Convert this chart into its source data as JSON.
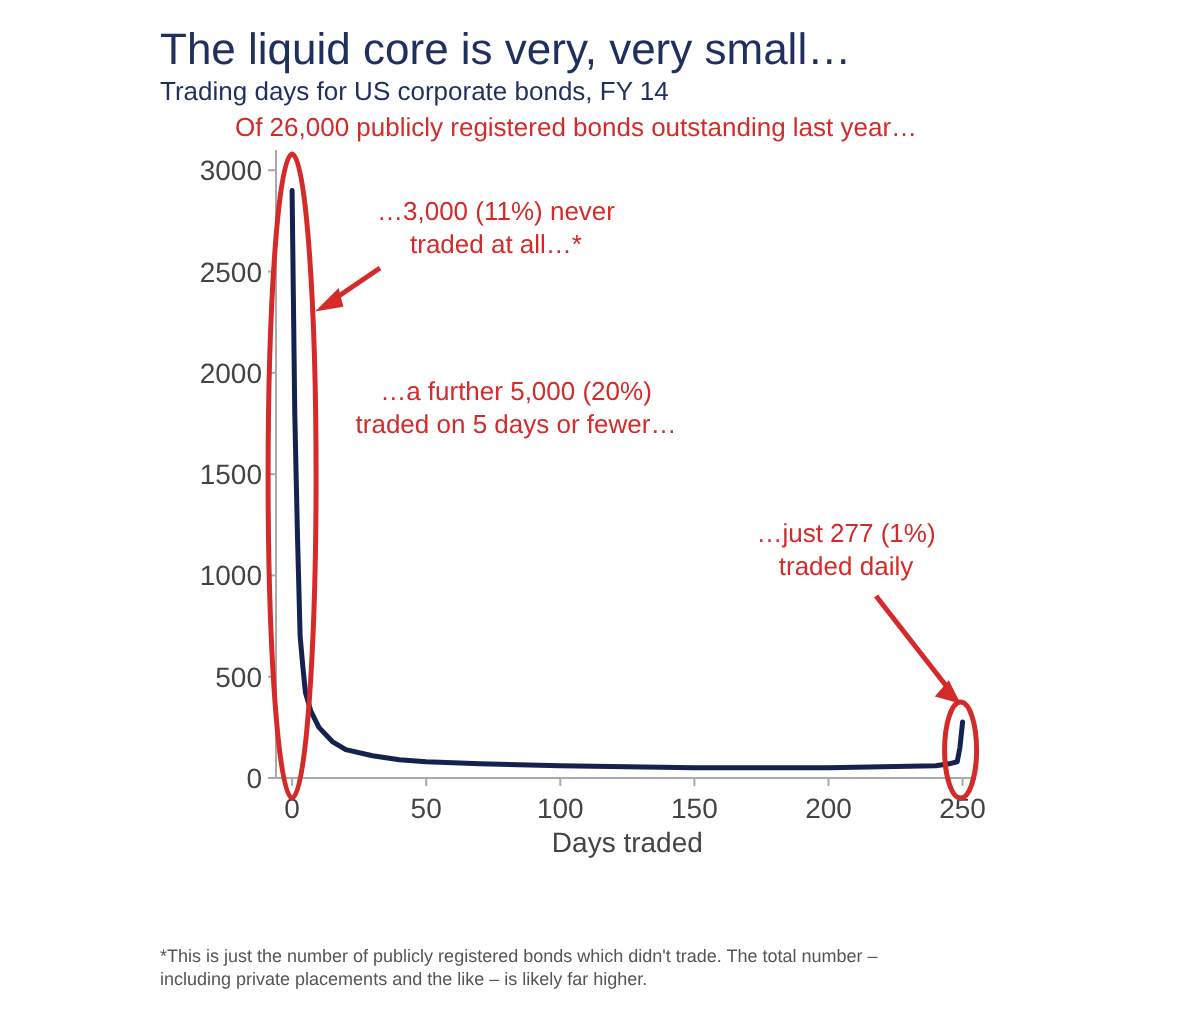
{
  "chart_data": {
    "type": "line",
    "title": "The liquid core is very, very small…",
    "subtitle": "Trading days for US corporate bonds, FY 14",
    "xlabel": "Days traded",
    "x": [
      0,
      1,
      2,
      3,
      4,
      5,
      7,
      10,
      15,
      20,
      30,
      40,
      50,
      70,
      100,
      150,
      200,
      240,
      245,
      248,
      249,
      250
    ],
    "series": [
      {
        "color": "#14224f",
        "values": [
          2900,
          1800,
          1200,
          700,
          550,
          420,
          330,
          250,
          180,
          140,
          110,
          90,
          80,
          70,
          60,
          50,
          50,
          60,
          70,
          80,
          150,
          277
        ]
      }
    ],
    "xlim": [
      -6,
      255
    ],
    "xticks": [
      0,
      50,
      100,
      150,
      200,
      250
    ],
    "ylim": [
      0,
      3100
    ],
    "yticks": [
      0,
      500,
      1000,
      1500,
      2000,
      2500,
      3000
    ],
    "grid": false,
    "annotations": [
      "Of 26,000 publicly registered bonds outstanding last year…",
      "…3,000 (11%) never traded at all…*",
      "…a further 5,000 (20%) traded on 5 days or fewer…",
      "…just 277 (1%) traded daily",
      "*This is just the number of publicly registered bonds which didn't trade.  The total number – including private placements and the like – is likely far higher."
    ]
  }
}
